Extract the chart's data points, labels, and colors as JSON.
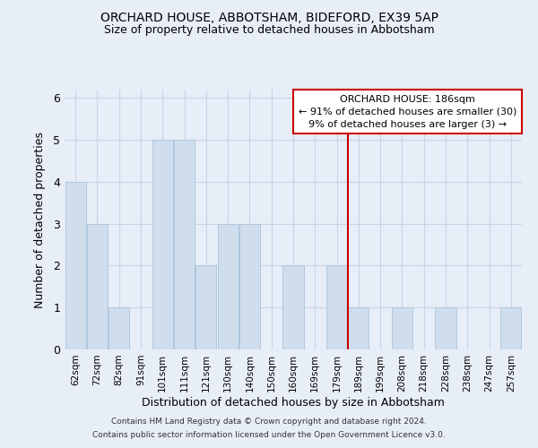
{
  "title": "ORCHARD HOUSE, ABBOTSHAM, BIDEFORD, EX39 5AP",
  "subtitle": "Size of property relative to detached houses in Abbotsham",
  "xlabel": "Distribution of detached houses by size in Abbotsham",
  "ylabel": "Number of detached properties",
  "categories": [
    "62sqm",
    "72sqm",
    "82sqm",
    "91sqm",
    "101sqm",
    "111sqm",
    "121sqm",
    "130sqm",
    "140sqm",
    "150sqm",
    "160sqm",
    "169sqm",
    "179sqm",
    "189sqm",
    "199sqm",
    "208sqm",
    "218sqm",
    "228sqm",
    "238sqm",
    "247sqm",
    "257sqm"
  ],
  "values": [
    4,
    3,
    1,
    0,
    5,
    5,
    2,
    3,
    3,
    0,
    2,
    0,
    2,
    1,
    0,
    1,
    0,
    1,
    0,
    0,
    1
  ],
  "bar_color": "#cfdded",
  "bar_edgecolor": "#b0c8de",
  "subject_line_index": 13,
  "subject_line_color": "#cc0000",
  "annotation_text": "ORCHARD HOUSE: 186sqm\n← 91% of detached houses are smaller (30)\n9% of detached houses are larger (3) →",
  "annotation_box_color": "#ffffff",
  "annotation_box_edgecolor": "#cc0000",
  "ylim": [
    0,
    6.2
  ],
  "yticks": [
    0,
    1,
    2,
    3,
    4,
    5,
    6
  ],
  "grid_color": "#c8d4e4",
  "background_color": "#e8eef8",
  "footer_line1": "Contains HM Land Registry data © Crown copyright and database right 2024.",
  "footer_line2": "Contains public sector information licensed under the Open Government Licence v3.0."
}
